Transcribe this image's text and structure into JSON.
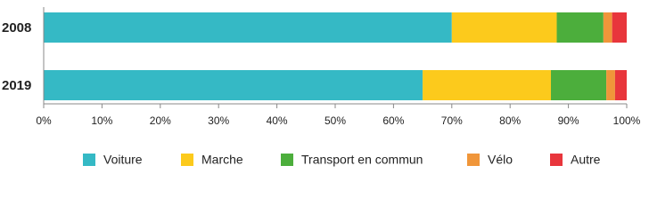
{
  "chart_data": {
    "type": "stacked-bar",
    "orientation": "horizontal",
    "categories": [
      "2008",
      "2019"
    ],
    "series": [
      {
        "name": "Voiture",
        "color": "#35b9c5",
        "values": [
          70,
          65
        ]
      },
      {
        "name": "Marche",
        "color": "#fcca1c",
        "values": [
          18,
          22
        ]
      },
      {
        "name": "Transport en commun",
        "color": "#4cae3c",
        "values": [
          8,
          9.5
        ]
      },
      {
        "name": "Vélo",
        "color": "#f0963a",
        "values": [
          1.5,
          1.5
        ]
      },
      {
        "name": "Autre",
        "color": "#e8363c",
        "values": [
          2.5,
          2
        ]
      }
    ],
    "xlim": [
      0,
      100
    ],
    "xticks": [
      {
        "value": 0,
        "label": "0%"
      },
      {
        "value": 10,
        "label": "10%"
      },
      {
        "value": 20,
        "label": "20%"
      },
      {
        "value": 30,
        "label": "30%"
      },
      {
        "value": 40,
        "label": "40%"
      },
      {
        "value": 50,
        "label": "50%"
      },
      {
        "value": 60,
        "label": "60%"
      },
      {
        "value": 70,
        "label": "70%"
      },
      {
        "value": 80,
        "label": "80%"
      },
      {
        "value": 90,
        "label": "90%"
      },
      {
        "value": 100,
        "label": "100%"
      }
    ],
    "grid": false,
    "legend": "bottom"
  }
}
